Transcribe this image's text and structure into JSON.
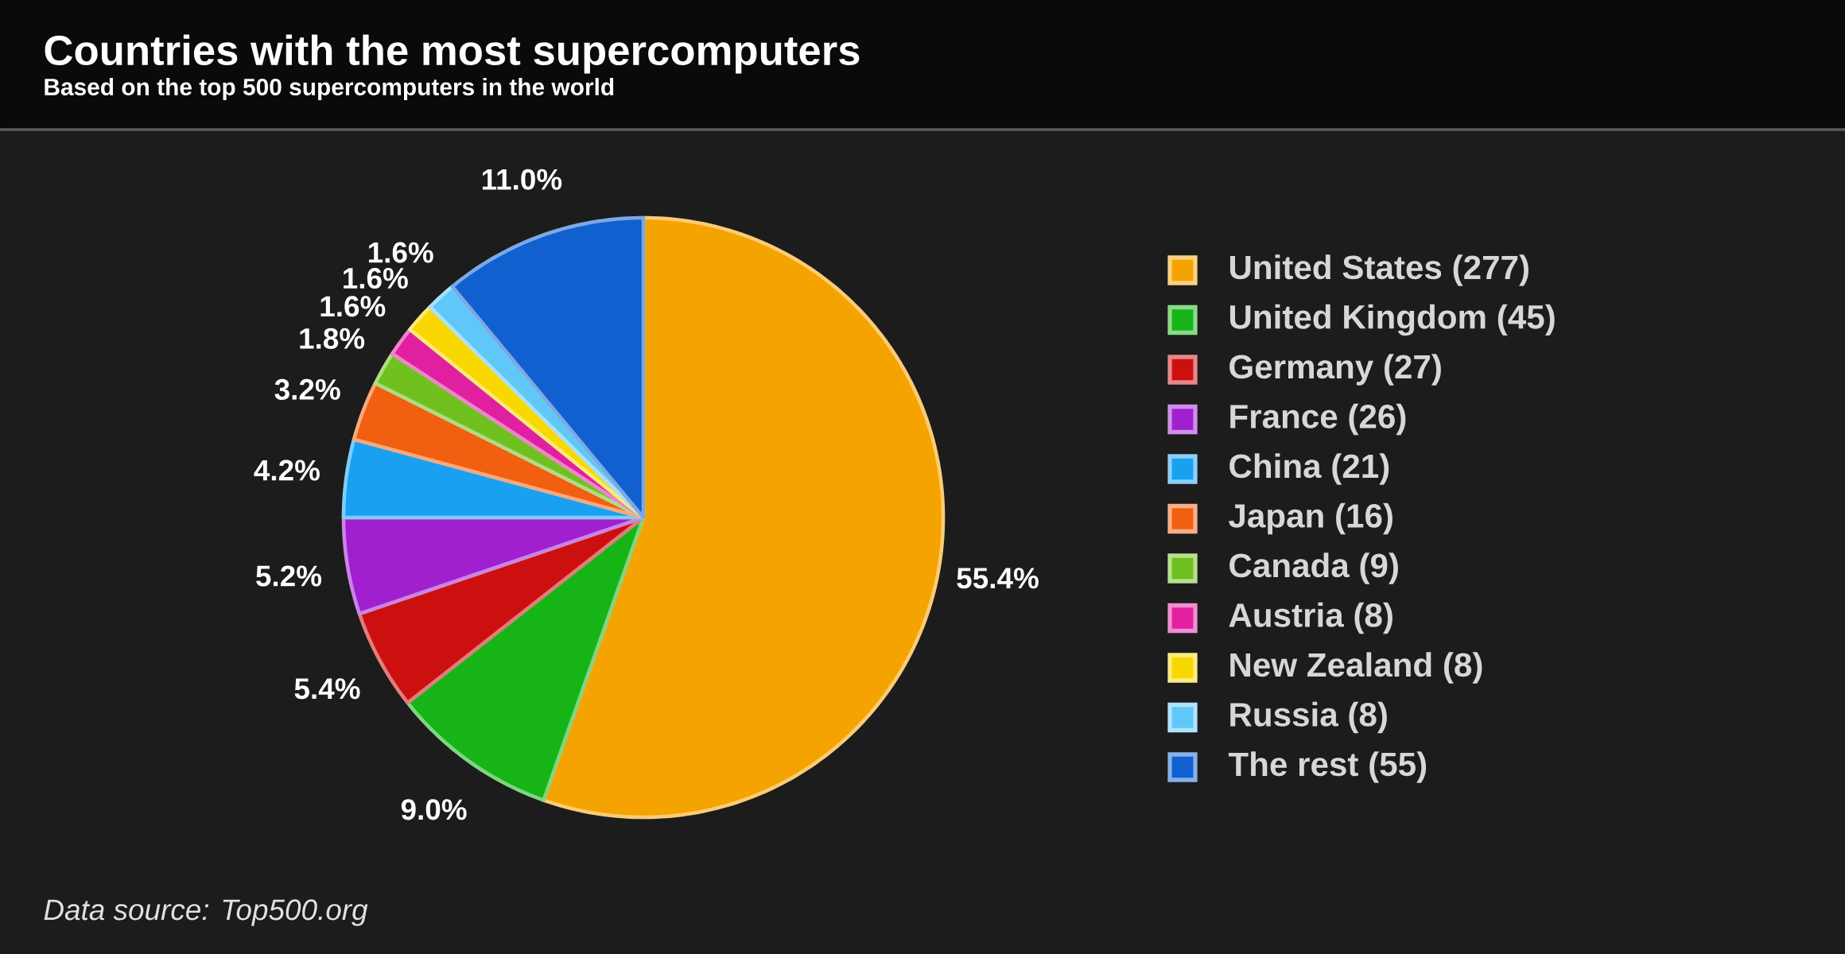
{
  "chart_data": {
    "type": "pie",
    "title": "Countries with the most supercomputers",
    "subtitle": "Based on the top 500 supercomputers in the world",
    "categories": [
      "United States (277)",
      "United Kingdom (45)",
      "Germany (27)",
      "France (26)",
      "China (21)",
      "Japan (16)",
      "Canada (9)",
      "Austria (8)",
      "New Zealand (8)",
      "Russia (8)",
      "The rest (55)"
    ],
    "values": [
      55.4,
      9.0,
      5.4,
      5.2,
      4.2,
      3.2,
      1.8,
      1.6,
      1.6,
      1.6,
      11.0
    ],
    "value_labels": [
      "55.4%",
      "9.0%",
      "5.4%",
      "5.2%",
      "4.2%",
      "3.2%",
      "1.8%",
      "1.6%",
      "1.6%",
      "1.6%",
      "11.0%"
    ],
    "colors": [
      "#f5a300",
      "#17b417",
      "#cc1010",
      "#a020d0",
      "#1aa0f0",
      "#f06010",
      "#70c020",
      "#e020a0",
      "#f8d800",
      "#60c8f8",
      "#1060d0"
    ],
    "legend": "right",
    "annotations": [
      "Data source: Top500.org"
    ]
  }
}
